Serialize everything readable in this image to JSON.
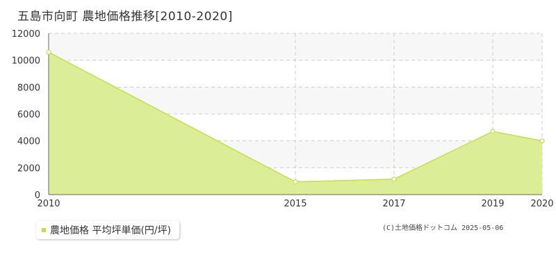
{
  "title": "五島市向町 農地価格推移[2010-2020]",
  "copyright": "(C)土地価格ドットコム 2025-05-06",
  "colors": {
    "fill": "#dbed96",
    "line": "#c2e04a",
    "marker_stroke": "#c2e04a",
    "marker_fill": "#ffffff",
    "grid": "#cccccc",
    "band": "#f7f7f8",
    "axis": "#666666",
    "tick_text": "#333333"
  },
  "chart_data": {
    "type": "area",
    "x": [
      2010,
      2015,
      2017,
      2019,
      2020
    ],
    "x_ticks": [
      "2010",
      "2015",
      "2017",
      "2019",
      "2020"
    ],
    "xlim": [
      2010,
      2020
    ],
    "ylim": [
      0,
      12000
    ],
    "y_ticks": [
      "0",
      "2000",
      "4000",
      "6000",
      "8000",
      "10000",
      "12000"
    ],
    "grid": true,
    "legend_position": "bottom-left",
    "series": [
      {
        "name": "農地価格 平均坪単価(円/坪)",
        "values": [
          10600,
          950,
          1150,
          4700,
          4000
        ]
      }
    ]
  }
}
